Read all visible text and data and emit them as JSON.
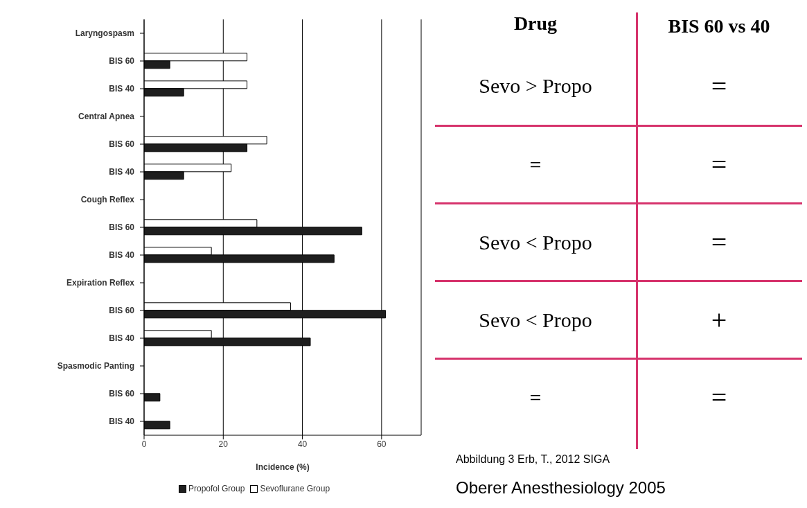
{
  "chart_data": {
    "type": "bar",
    "orientation": "horizontal",
    "categories": [
      "Laryngospasm",
      "BIS 60",
      "BIS 40",
      "Central Apnea",
      "BIS 60",
      "BIS 40",
      "Cough Reflex",
      "BIS 60",
      "BIS 40",
      "Expiration Reflex",
      "BIS 60",
      "BIS 40",
      "Spasmodic Panting",
      "BIS 60",
      "BIS 40"
    ],
    "series": [
      {
        "name": "Propofol Group",
        "color": "#1e1e1e",
        "values": [
          null,
          6.5,
          10,
          null,
          26,
          10,
          null,
          55,
          48,
          null,
          61,
          42,
          null,
          4,
          6.5
        ]
      },
      {
        "name": "Sevoflurane Group",
        "color": "#ffffff",
        "values": [
          null,
          26,
          26,
          null,
          31,
          22,
          null,
          28.5,
          17,
          null,
          37,
          17,
          null,
          0,
          0
        ]
      }
    ],
    "xlabel": "Incidence (%)",
    "xlim": [
      0,
      70
    ],
    "xticks": [
      0,
      20,
      40,
      60
    ],
    "grid": "x",
    "legend": "bottom",
    "annotations": [
      "Drug",
      "BIS 60 vs 40",
      "Sevo > Propo",
      "=",
      "=",
      "=",
      "Sevo < Propo",
      "=",
      "Sevo < Propo",
      "+",
      "=",
      "=",
      "Abbildung 3 Erb, T., 2012 SIGA",
      "Oberer Anesthesiology 2005"
    ]
  }
}
